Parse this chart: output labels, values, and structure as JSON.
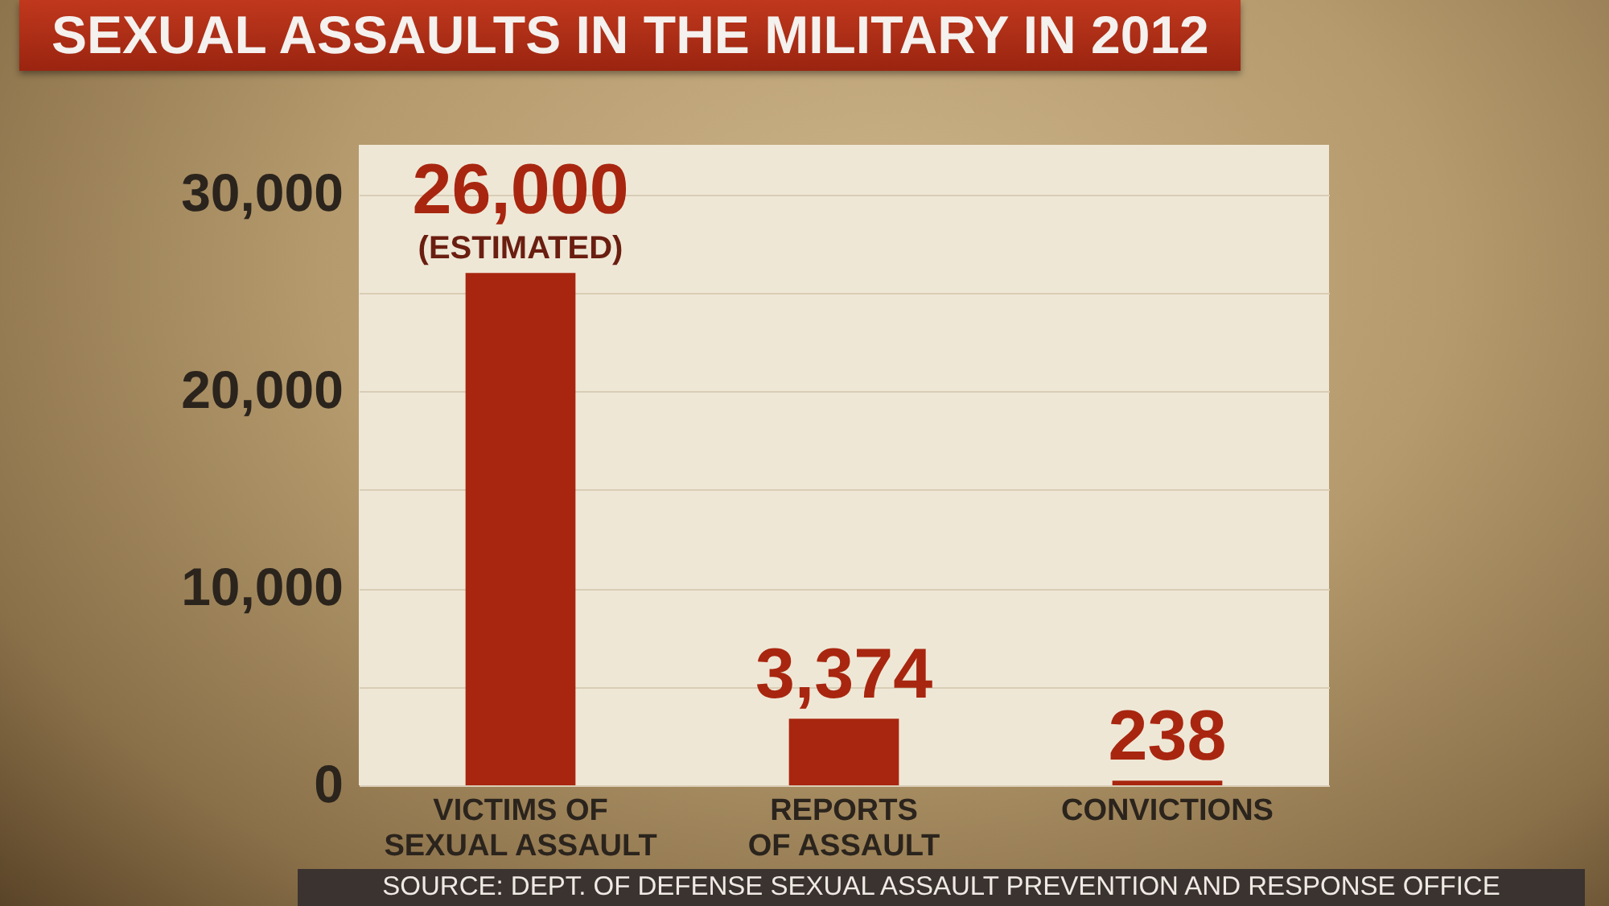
{
  "chart_data": {
    "type": "bar",
    "title": "SEXUAL ASSAULTS IN THE MILITARY IN 2012",
    "categories": [
      "VICTIMS OF\nSEXUAL ASSAULT",
      "REPORTS\nOF ASSAULT",
      "CONVICTIONS"
    ],
    "values": [
      26000,
      3374,
      238
    ],
    "color": "#a8260f",
    "value_labels": [
      "26,000",
      "3,374",
      "238"
    ],
    "ylim": [
      0,
      32500
    ],
    "yticks": [
      0,
      {
        "value": 5000,
        "label": null
      },
      {
        "value": 10000,
        "label": "10,000"
      },
      {
        "value": 15000,
        "label": null
      },
      {
        "value": 20000,
        "label": "20,000"
      },
      {
        "value": 25000,
        "label": null
      },
      {
        "value": 30000,
        "label": "30,000"
      }
    ],
    "grid": "y",
    "annotations": [
      {
        "text": "(ESTIMATED)",
        "x": "VICTIMS OF\nSEXUAL ASSAULT",
        "y": 26000
      },
      "SOURCE: DEPT. OF DEFENSE SEXUAL ASSAULT PREVENTION AND RESPONSE OFFICE"
    ]
  }
}
